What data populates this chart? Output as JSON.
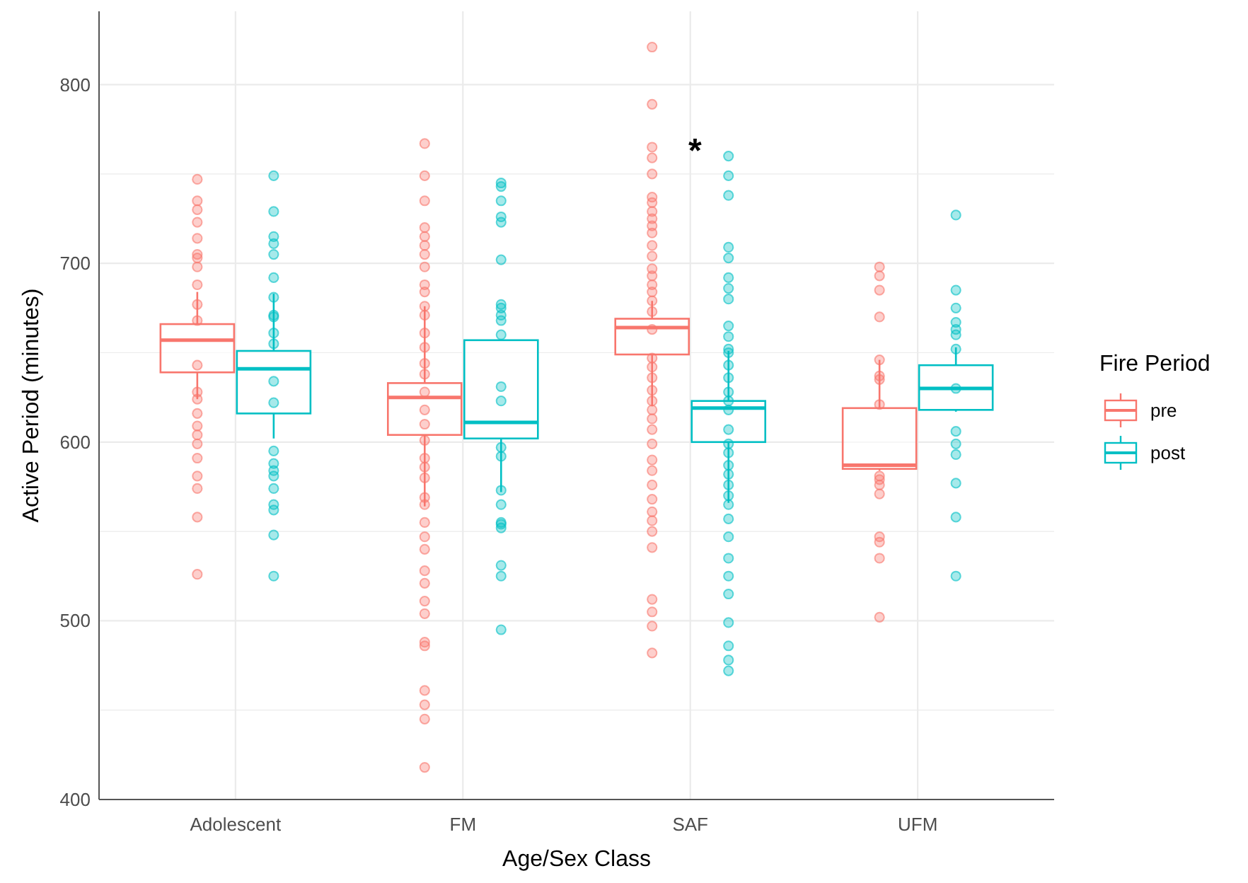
{
  "chart_data": {
    "type": "box",
    "xlabel": "Age/Sex Class",
    "ylabel": "Active Period (minutes)",
    "legend_title": "Fire Period",
    "legend": "right",
    "grid": true,
    "categories": [
      "Adolescent",
      "FM",
      "SAF",
      "UFM"
    ],
    "ylim": [
      400,
      841
    ],
    "yticks": [
      400,
      {
        "value": 450,
        "label": null
      },
      500,
      {
        "value": 550,
        "label": null
      },
      600,
      {
        "value": 650,
        "label": null
      },
      700,
      {
        "value": 750,
        "label": null
      },
      800
    ],
    "annotations": [
      "*"
    ],
    "series": [
      {
        "name": "pre",
        "color": "#f8766d",
        "boxes": [
          {
            "low": 624,
            "q1": 639,
            "median": 657,
            "q3": 666,
            "high": 684
          },
          {
            "low": 564,
            "q1": 604,
            "median": 625,
            "q3": 633,
            "high": 676
          },
          {
            "low": 620,
            "q1": 649,
            "median": 664,
            "q3": 669,
            "high": 679
          },
          {
            "low": 584,
            "q1": 585,
            "median": 587,
            "q3": 619,
            "high": 646
          }
        ]
      },
      {
        "name": "post",
        "color": "#00bfc4",
        "boxes": [
          {
            "low": 602,
            "q1": 616,
            "median": 641,
            "q3": 651,
            "high": 683
          },
          {
            "low": 572,
            "q1": 602,
            "median": 611,
            "q3": 657,
            "high": 657
          },
          {
            "low": 566,
            "q1": 600,
            "median": 619,
            "q3": 623,
            "high": 651
          },
          {
            "low": 617,
            "q1": 618,
            "median": 630,
            "q3": 643,
            "high": 653
          }
        ]
      },
      {
        "type": "scatter",
        "color": "#f8766d",
        "x": [
          "Adolescent",
          "Adolescent",
          "Adolescent",
          "Adolescent",
          "Adolescent",
          "Adolescent",
          "Adolescent",
          "Adolescent",
          "Adolescent",
          "Adolescent",
          "Adolescent",
          "Adolescent",
          "Adolescent",
          "Adolescent",
          "Adolescent",
          "Adolescent",
          "Adolescent",
          "Adolescent",
          "Adolescent",
          "Adolescent",
          "Adolescent",
          "Adolescent",
          "Adolescent",
          "FM",
          "FM",
          "FM",
          "FM",
          "FM",
          "FM",
          "FM",
          "FM",
          "FM",
          "FM",
          "FM",
          "FM",
          "FM",
          "FM",
          "FM",
          "FM",
          "FM",
          "FM",
          "FM",
          "FM",
          "FM",
          "FM",
          "FM",
          "FM",
          "FM",
          "FM",
          "FM",
          "FM",
          "FM",
          "FM",
          "FM",
          "FM",
          "FM",
          "FM",
          "FM",
          "FM",
          "FM",
          "FM",
          "SAF",
          "SAF",
          "SAF",
          "SAF",
          "SAF",
          "SAF",
          "SAF",
          "SAF",
          "SAF",
          "SAF",
          "SAF",
          "SAF",
          "SAF",
          "SAF",
          "SAF",
          "SAF",
          "SAF",
          "SAF",
          "SAF",
          "SAF",
          "SAF",
          "SAF",
          "SAF",
          "SAF",
          "SAF",
          "SAF",
          "SAF",
          "SAF",
          "SAF",
          "SAF",
          "SAF",
          "SAF",
          "SAF",
          "SAF",
          "SAF",
          "SAF",
          "SAF",
          "SAF",
          "SAF",
          "SAF",
          "SAF",
          "UFM",
          "UFM",
          "UFM",
          "UFM",
          "UFM",
          "UFM",
          "UFM",
          "UFM",
          "UFM",
          "UFM",
          "UFM",
          "UFM",
          "UFM",
          "UFM",
          "UFM",
          "UFM"
        ],
        "values": [
          747,
          735,
          730,
          723,
          714,
          705,
          703,
          698,
          688,
          677,
          668,
          643,
          628,
          624,
          616,
          609,
          604,
          599,
          591,
          581,
          574,
          558,
          526,
          767,
          749,
          735,
          720,
          715,
          710,
          705,
          698,
          688,
          684,
          676,
          671,
          661,
          653,
          644,
          638,
          628,
          618,
          610,
          601,
          591,
          586,
          580,
          569,
          565,
          555,
          547,
          540,
          528,
          521,
          511,
          504,
          488,
          486,
          461,
          453,
          445,
          418,
          821,
          789,
          765,
          759,
          750,
          737,
          734,
          729,
          725,
          721,
          717,
          710,
          704,
          697,
          693,
          688,
          684,
          679,
          673,
          663,
          647,
          642,
          636,
          629,
          623,
          618,
          613,
          607,
          599,
          590,
          584,
          576,
          568,
          561,
          556,
          550,
          541,
          512,
          505,
          497,
          482,
          698,
          693,
          685,
          670,
          646,
          637,
          635,
          621,
          581,
          579,
          576,
          571,
          547,
          544,
          535,
          502
        ]
      },
      {
        "type": "scatter",
        "color": "#00bfc4",
        "x": [
          "Adolescent",
          "Adolescent",
          "Adolescent",
          "Adolescent",
          "Adolescent",
          "Adolescent",
          "Adolescent",
          "Adolescent",
          "Adolescent",
          "Adolescent",
          "Adolescent",
          "Adolescent",
          "Adolescent",
          "Adolescent",
          "Adolescent",
          "Adolescent",
          "Adolescent",
          "Adolescent",
          "Adolescent",
          "Adolescent",
          "Adolescent",
          "Adolescent",
          "FM",
          "FM",
          "FM",
          "FM",
          "FM",
          "FM",
          "FM",
          "FM",
          "FM",
          "FM",
          "FM",
          "FM",
          "FM",
          "FM",
          "FM",
          "FM",
          "FM",
          "FM",
          "FM",
          "FM",
          "FM",
          "FM",
          "FM",
          "SAF",
          "SAF",
          "SAF",
          "SAF",
          "SAF",
          "SAF",
          "SAF",
          "SAF",
          "SAF",
          "SAF",
          "SAF",
          "SAF",
          "SAF",
          "SAF",
          "SAF",
          "SAF",
          "SAF",
          "SAF",
          "SAF",
          "SAF",
          "SAF",
          "SAF",
          "SAF",
          "SAF",
          "SAF",
          "SAF",
          "SAF",
          "SAF",
          "SAF",
          "SAF",
          "SAF",
          "SAF",
          "SAF",
          "SAF",
          "UFM",
          "UFM",
          "UFM",
          "UFM",
          "UFM",
          "UFM",
          "UFM",
          "UFM",
          "UFM",
          "UFM",
          "UFM",
          "UFM",
          "UFM",
          "UFM"
        ],
        "values": [
          749,
          729,
          715,
          711,
          705,
          692,
          681,
          671,
          670,
          661,
          655,
          634,
          622,
          595,
          588,
          584,
          581,
          574,
          565,
          562,
          548,
          525,
          745,
          743,
          735,
          726,
          723,
          702,
          677,
          675,
          671,
          668,
          660,
          631,
          623,
          597,
          592,
          573,
          565,
          555,
          554,
          552,
          531,
          525,
          495,
          760,
          749,
          738,
          709,
          703,
          692,
          686,
          680,
          665,
          659,
          652,
          650,
          643,
          636,
          628,
          623,
          618,
          607,
          599,
          594,
          587,
          582,
          576,
          570,
          565,
          557,
          547,
          535,
          525,
          515,
          499,
          486,
          478,
          472,
          727,
          685,
          675,
          667,
          663,
          660,
          652,
          630,
          606,
          599,
          593,
          577,
          558,
          525
        ]
      }
    ]
  }
}
